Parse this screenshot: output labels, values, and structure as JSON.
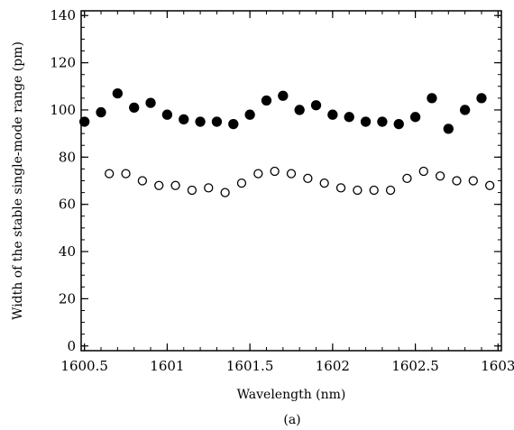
{
  "chart_data": {
    "type": "scatter",
    "xlabel": "Wavelength (nm)",
    "ylabel": "Width of the stable single-mode range (pm)",
    "caption": "(a)",
    "xlim": [
      1600.48,
      1603.02
    ],
    "ylim": [
      -2,
      142
    ],
    "x_ticks": [
      1600.5,
      1601,
      1601.5,
      1602,
      1602.5,
      1603
    ],
    "x_tick_labels": [
      "1600.5",
      "1601",
      "1601.5",
      "1602",
      "1602.5",
      "1603"
    ],
    "y_ticks": [
      0,
      20,
      40,
      60,
      80,
      100,
      120,
      140
    ],
    "y_tick_labels": [
      "0",
      "20",
      "40",
      "60",
      "80",
      "100",
      "120",
      "140"
    ],
    "grid": false,
    "series": [
      {
        "marker": "filled-circle",
        "color": "#000000",
        "x": [
          1600.5,
          1600.6,
          1600.7,
          1600.8,
          1600.9,
          1601.0,
          1601.1,
          1601.2,
          1601.3,
          1601.4,
          1601.5,
          1601.6,
          1601.7,
          1601.8,
          1601.9,
          1602.0,
          1602.1,
          1602.2,
          1602.3,
          1602.4,
          1602.5,
          1602.6,
          1602.7,
          1602.8,
          1602.9
        ],
        "y": [
          95,
          99,
          107,
          101,
          103,
          98,
          96,
          95,
          95,
          94,
          98,
          104,
          106,
          100,
          102,
          98,
          97,
          95,
          95,
          94,
          97,
          105,
          92,
          100,
          105
        ]
      },
      {
        "marker": "open-circle",
        "color": "#000000",
        "x": [
          1600.65,
          1600.75,
          1600.85,
          1600.95,
          1601.05,
          1601.15,
          1601.25,
          1601.35,
          1601.45,
          1601.55,
          1601.65,
          1601.75,
          1601.85,
          1601.95,
          1602.05,
          1602.15,
          1602.25,
          1602.35,
          1602.45,
          1602.55,
          1602.65,
          1602.75,
          1602.85,
          1602.95
        ],
        "y": [
          73,
          73,
          70,
          68,
          68,
          66,
          67,
          65,
          69,
          73,
          74,
          73,
          71,
          69,
          67,
          66,
          66,
          66,
          71,
          74,
          72,
          70,
          70,
          68
        ]
      }
    ]
  }
}
